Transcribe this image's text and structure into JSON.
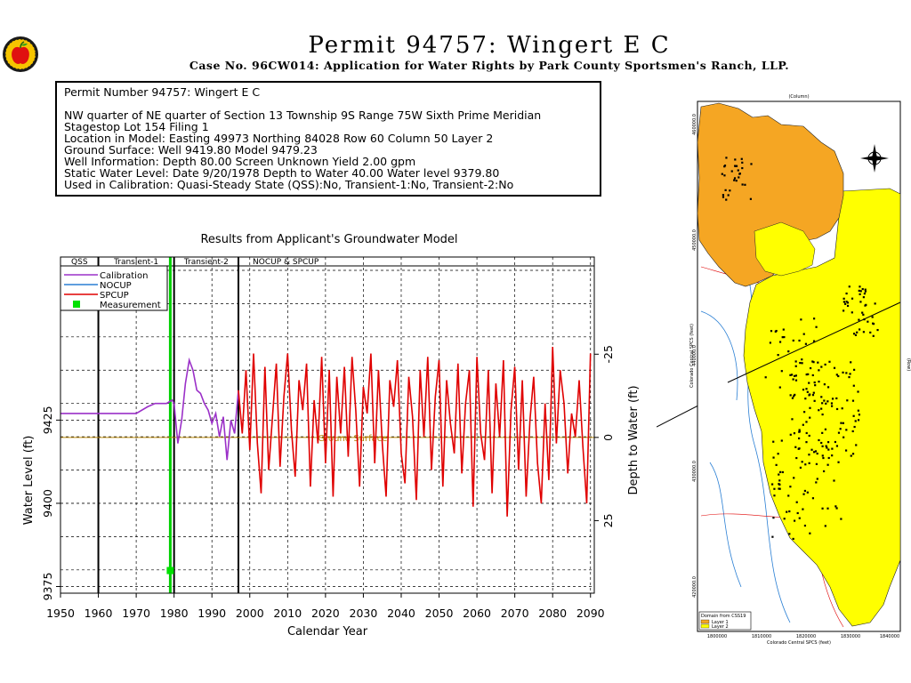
{
  "header": {
    "title": "Permit 94757:  Wingert E C",
    "subtitle": "Case No. 96CW014: Application for Water Rights by Park County Sportsmen's Ranch, LLP."
  },
  "info": {
    "line1": "Permit Number 94757: Wingert E C",
    "line2": "NW quarter of NE quarter of Section 13 Township 9S Range 75W Sixth Prime Meridian",
    "line3": "Stagestop Lot 154 Filing 1",
    "line4": "Location in Model: Easting 49973 Northing  84028 Row   60 Column 50 Layer 2",
    "line5": "Ground Surface: Well   9419.80 Model   9479.23",
    "line6": "Well Information: Depth     80.00 Screen Unknown Yield      2.00 gpm",
    "line7": "Static Water Level: Date   9/20/1978 Depth to Water     40.00 Water level   9379.80",
    "line8": "Used in Calibration: Quasi-Steady State (QSS):No, Transient-1:No, Transient-2:No"
  },
  "chart_data": {
    "type": "line",
    "title": "Results from Applicant's Groundwater Model",
    "xlabel": "Calendar Year",
    "ylabel": "Water Level (ft)",
    "y2label": "Depth to Water (ft)",
    "xlim": [
      1950,
      2091
    ],
    "ylim": [
      9373,
      9474
    ],
    "xticks": [
      1950,
      1960,
      1970,
      1980,
      1990,
      2000,
      2010,
      2020,
      2030,
      2040,
      2050,
      2060,
      2070,
      2080,
      2090
    ],
    "yticks": [
      9375,
      9400,
      9425
    ],
    "y2ticks": [
      {
        "label": "-25",
        "value": 9444.8
      },
      {
        "label": "0",
        "value": 9419.8
      },
      {
        "label": "25",
        "value": 9394.8
      }
    ],
    "ground_surface": {
      "value": 9419.8,
      "label": "Ground Surface",
      "color": "#b8860b"
    },
    "periods": [
      {
        "label": "QSS",
        "start": 1950,
        "end": 1960
      },
      {
        "label": "Transient-1",
        "start": 1960,
        "end": 1980
      },
      {
        "label": "Transient-2",
        "start": 1980,
        "end": 1997
      },
      {
        "label": "NOCUP  &  SPCUP",
        "start": 1997,
        "end": 2091
      }
    ],
    "legend": {
      "placement": "top-left",
      "entries": [
        {
          "name": "Calibration",
          "color": "#9b30c8"
        },
        {
          "name": "NOCUP",
          "color": "#2a7fd4"
        },
        {
          "name": "SPCUP",
          "color": "#e00000"
        },
        {
          "name": "Measurement",
          "color": "#00e000"
        }
      ]
    },
    "measurement_line_year": 1979,
    "series": [
      {
        "name": "Calibration",
        "color": "#9b30c8",
        "x": [
          1950,
          1970,
          1973,
          1975,
          1978,
          1979.5,
          1980,
          1981,
          1982,
          1983,
          1984,
          1985,
          1986,
          1987,
          1988,
          1989,
          1990,
          1991,
          1992,
          1993,
          1994,
          1995,
          1996,
          1997
        ],
        "y": [
          9427,
          9427,
          9429,
          9430,
          9430,
          9431,
          9430,
          9418,
          9425,
          9436,
          9443,
          9440,
          9434,
          9433,
          9430,
          9428,
          9424,
          9427,
          9420,
          9426,
          9413,
          9425,
          9421,
          9434
        ]
      },
      {
        "name": "SPCUP",
        "color": "#e00000",
        "x": [
          1997,
          1998,
          1999,
          2000,
          2001,
          2002,
          2003,
          2004,
          2005,
          2006,
          2007,
          2008,
          2009,
          2010,
          2011,
          2012,
          2013,
          2014,
          2015,
          2016,
          2017,
          2018,
          2019,
          2020,
          2021,
          2022,
          2023,
          2024,
          2025,
          2026,
          2027,
          2028,
          2029,
          2030,
          2031,
          2032,
          2033,
          2034,
          2035,
          2036,
          2037,
          2038,
          2039,
          2040,
          2041,
          2042,
          2043,
          2044,
          2045,
          2046,
          2047,
          2048,
          2049,
          2050,
          2051,
          2052,
          2053,
          2054,
          2055,
          2056,
          2057,
          2058,
          2059,
          2060,
          2061,
          2062,
          2063,
          2064,
          2065,
          2066,
          2067,
          2068,
          2069,
          2070,
          2071,
          2072,
          2073,
          2074,
          2075,
          2076,
          2077,
          2078,
          2079,
          2080,
          2081,
          2082,
          2083,
          2084,
          2085,
          2086,
          2087,
          2088,
          2089,
          2090
        ],
        "y": [
          9434,
          9421,
          9440,
          9416,
          9445,
          9418,
          9403,
          9441,
          9410,
          9426,
          9442,
          9411,
          9432,
          9445,
          9422,
          9408,
          9437,
          9428,
          9442,
          9405,
          9431,
          9418,
          9444,
          9412,
          9440,
          9402,
          9438,
          9421,
          9441,
          9414,
          9444,
          9428,
          9405,
          9435,
          9427,
          9445,
          9412,
          9440,
          9418,
          9402,
          9437,
          9429,
          9443,
          9415,
          9406,
          9438,
          9426,
          9401,
          9440,
          9420,
          9444,
          9410,
          9432,
          9443,
          9405,
          9437,
          9424,
          9415,
          9442,
          9409,
          9430,
          9440,
          9399,
          9444,
          9421,
          9413,
          9440,
          9403,
          9436,
          9420,
          9443,
          9396,
          9428,
          9441,
          9410,
          9437,
          9402,
          9425,
          9438,
          9412,
          9400,
          9430,
          9407,
          9447,
          9418,
          9440,
          9430,
          9409,
          9427,
          9420,
          9437,
          9417,
          9400,
          9445
        ]
      }
    ]
  },
  "map": {
    "legend_title": "Domain  from  CSS19",
    "legend_layer1": "Layer 1",
    "legend_layer2": "Layer 2",
    "legend_color1": "#f5a623",
    "legend_color2": "#ffff00",
    "bottom_axis_label": "Colorado Central SPCS (feet)",
    "side_axis_label": "Colorado Central SPCS (feet)",
    "top_label": "(Column)",
    "right_label": "(Row)",
    "x_tick_1": "1800000",
    "x_tick_2": "1810000",
    "x_tick_3": "1820000",
    "x_tick_4": "1830000",
    "x_tick_5": "1840000",
    "y_tick_1": "460000.0",
    "y_tick_2": "450000.0",
    "y_tick_3": "440000.0",
    "y_tick_4": "430000.0",
    "y_tick_5": "420000.0"
  }
}
